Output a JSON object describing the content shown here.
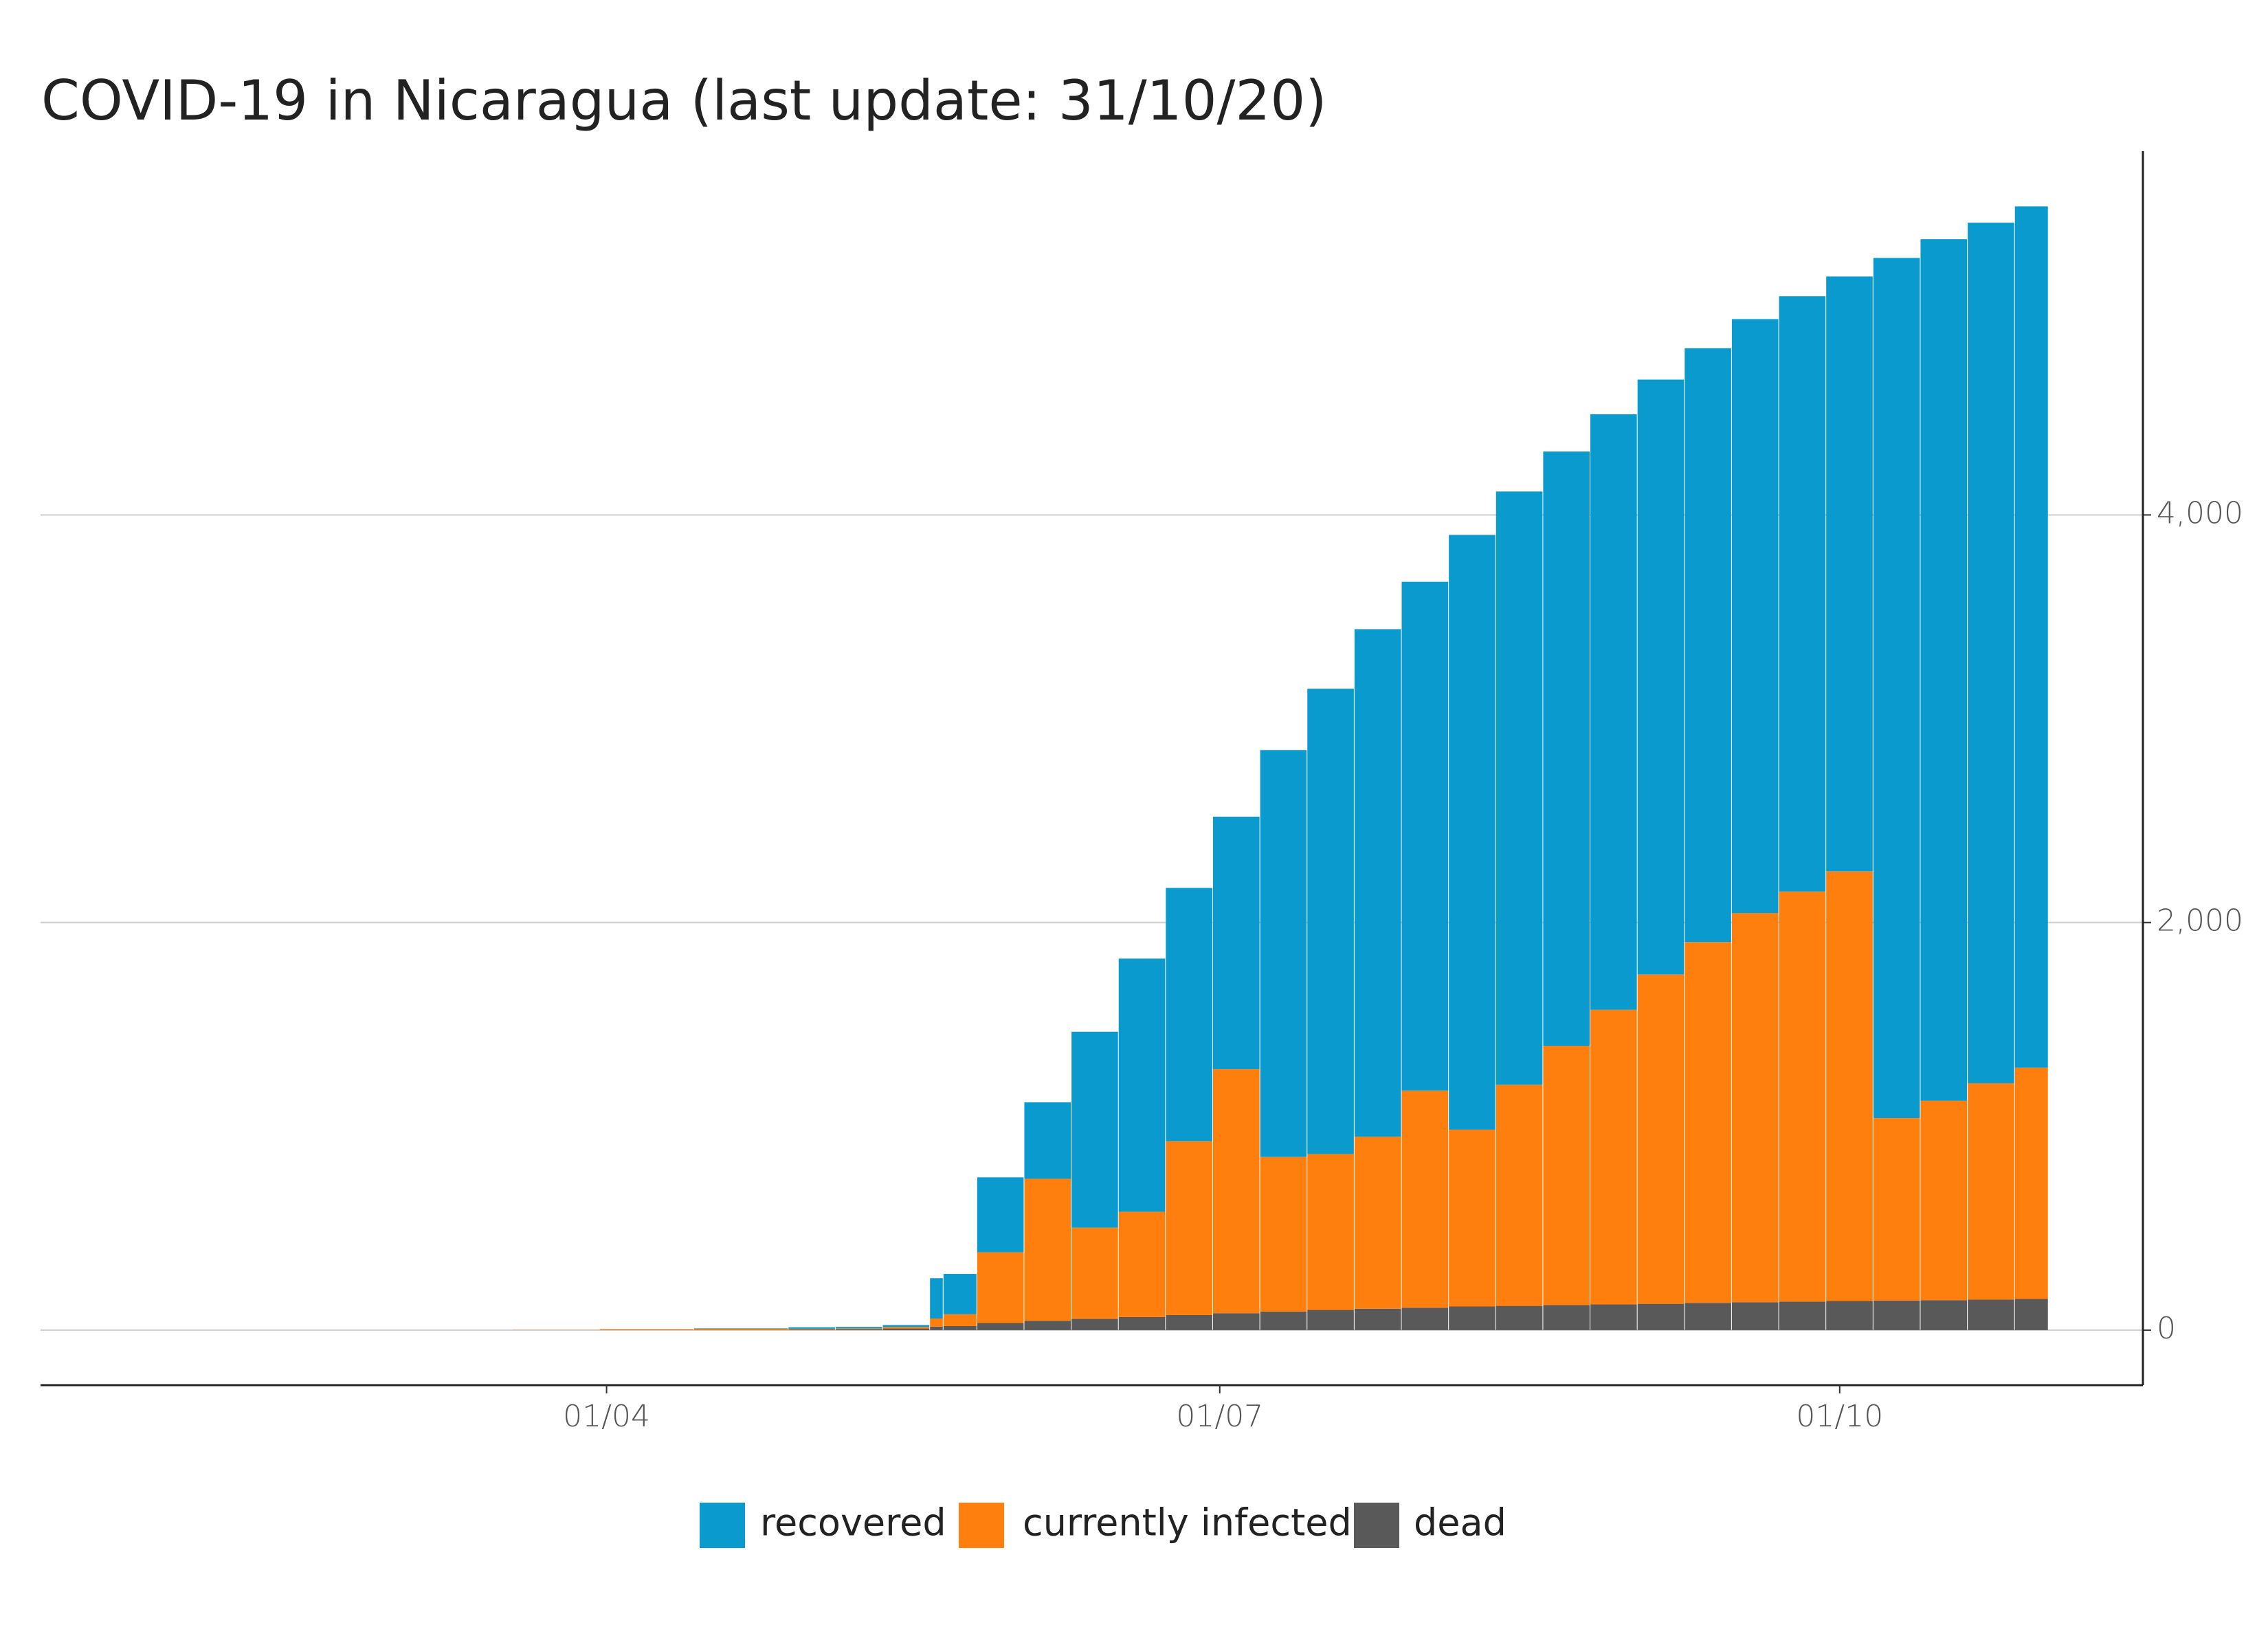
{
  "chart_data": {
    "type": "stacked_bar",
    "title": "COVID-19 in Nicaragua (last update: 31/10/20)",
    "x": [
      "18/03",
      "31/03",
      "14/04",
      "28/04",
      "05/05",
      "12/05",
      "19/05",
      "21/05",
      "26/05",
      "02/06",
      "09/06",
      "16/06",
      "23/06",
      "30/06",
      "07/07",
      "14/07",
      "21/07",
      "28/07",
      "04/08",
      "11/08",
      "18/08",
      "25/08",
      "01/09",
      "08/09",
      "15/09",
      "22/09",
      "29/09",
      "06/10",
      "13/10",
      "20/10",
      "27/10"
    ],
    "series": [
      {
        "name": "recovered",
        "color": "#0a9ace",
        "values": [
          0,
          0,
          2,
          7,
          7,
          9,
          198,
          198,
          368,
          375,
          961,
          1242,
          1243,
          1238,
          1996,
          2283,
          2490,
          2497,
          2918,
          2911,
          2916,
          2922,
          2919,
          2914,
          2915,
          2921,
          2919,
          4220,
          4227,
          4223,
          4226
        ]
      },
      {
        "name": "currently infected",
        "color": "#ff7f0e",
        "values": [
          1,
          4,
          6,
          4,
          4,
          8,
          40,
          58,
          347,
          697,
          448,
          517,
          853,
          1198,
          759,
          765,
          844,
          1065,
          868,
          1085,
          1272,
          1446,
          1616,
          1771,
          1909,
          2012,
          2108,
          896,
          979,
          1061,
          1135
        ]
      },
      {
        "name": "dead",
        "color": "#595959",
        "values": [
          0,
          1,
          1,
          3,
          5,
          8,
          17,
          20,
          35,
          46,
          55,
          64,
          74,
          83,
          91,
          99,
          105,
          110,
          116,
          119,
          123,
          126,
          129,
          133,
          137,
          140,
          143,
          145,
          147,
          150,
          153
        ]
      }
    ],
    "xlim": [
      "08/01",
      "15/11"
    ],
    "xticks": [
      "01/04",
      "01/07",
      "01/10"
    ],
    "ylim": [
      -270,
      5785
    ],
    "yticks": [
      0,
      {
        "value": 2000,
        "label": "2,000"
      },
      {
        "value": 4000,
        "label": "4,000"
      }
    ],
    "grid": true,
    "legend": "bottom"
  }
}
